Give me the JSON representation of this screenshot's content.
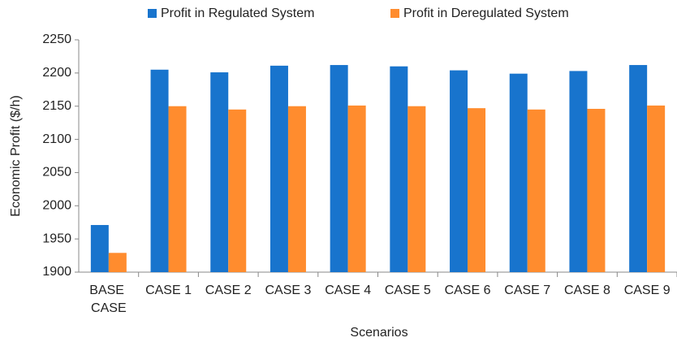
{
  "chart_data": {
    "type": "bar",
    "x_label": "Scenarios",
    "y_label": "Economic Profit ($/h)",
    "categories": [
      "BASE CASE",
      "CASE 1",
      "CASE 2",
      "CASE 3",
      "CASE 4",
      "CASE 5",
      "CASE 6",
      "CASE 7",
      "CASE 8",
      "CASE 9"
    ],
    "series": [
      {
        "name": "Profit in Regulated System",
        "color": "#1874cd",
        "values": [
          1971,
          2205,
          2201,
          2211,
          2212,
          2210,
          2204,
          2199,
          2203,
          2212
        ]
      },
      {
        "name": "Profit in Deregulated System",
        "color": "#ff8c2e",
        "values": [
          1929,
          2150,
          2145,
          2150,
          2151,
          2150,
          2147,
          2145,
          2146,
          2151
        ]
      }
    ],
    "ylim": [
      1900,
      2250
    ],
    "yticks": [
      1900,
      1950,
      2000,
      2050,
      2100,
      2150,
      2200,
      2250
    ],
    "grid": false,
    "legend": "top"
  }
}
